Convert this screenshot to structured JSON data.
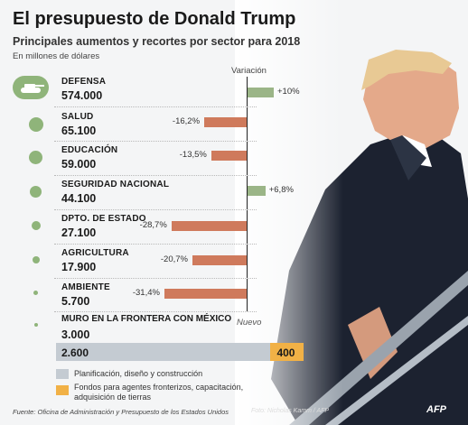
{
  "header": {
    "title": "El presupuesto de Donald Trump",
    "subtitle": "Principales aumentos y recortes por sector para 2018",
    "unit": "En millones de dólares",
    "variation_label": "Variación"
  },
  "chart_data": [
    {
      "type": "bar",
      "title": "El presupuesto de Donald Trump",
      "subtitle": "Principales aumentos y recortes por sector para 2018",
      "unit": "En millones de dólares",
      "xlabel": "Variación",
      "categories": [
        "DEFENSA",
        "SALUD",
        "EDUCACIÓN",
        "SEGURIDAD NACIONAL",
        "DPTO. DE ESTADO",
        "AGRICULTURA",
        "AMBIENTE"
      ],
      "budget": [
        574000,
        65100,
        59000,
        44100,
        27100,
        17900,
        5700
      ],
      "budget_labels": [
        "574.000",
        "65.100",
        "59.000",
        "44.100",
        "27.100",
        "17.900",
        "5.700"
      ],
      "variation_pct": [
        10,
        -16.2,
        -13.5,
        6.8,
        -28.7,
        -20.7,
        -31.4
      ],
      "variation_labels": [
        "+10%",
        "-16,2%",
        "-13,5%",
        "+6,8%",
        "-28,7%",
        "-20,7%",
        "-31,4%"
      ],
      "colors": {
        "increase": "#9bb587",
        "decrease": "#cf7a5c",
        "sector_dot": "#8fb47a"
      }
    },
    {
      "type": "bar",
      "stacked": true,
      "title": "MURO EN LA FRONTERA CON MÉXICO",
      "total_label": "3.000",
      "new_label": "Nuevo",
      "series": [
        {
          "name": "Planificación, diseño y construcción",
          "value": 2600,
          "value_label": "2.600",
          "color": "#c4cbd2"
        },
        {
          "name": "Fondos para agentes fronterizos, capacitación, adquisición de tierras",
          "value": 400,
          "value_label": "400",
          "color": "#f1b146"
        }
      ]
    }
  ],
  "legend": {
    "item1": "Planificación, diseño y construcción",
    "item2_line1": "Fondos para agentes fronterizos, capacitación,",
    "item2_line2": "adquisición de tierras"
  },
  "footer": {
    "source": "Fuente: Oficina de Administración y Presupuesto de los Estados Unidos",
    "credit": "Foto: Nicholas Kamm / AFP",
    "logo": "AFP"
  }
}
